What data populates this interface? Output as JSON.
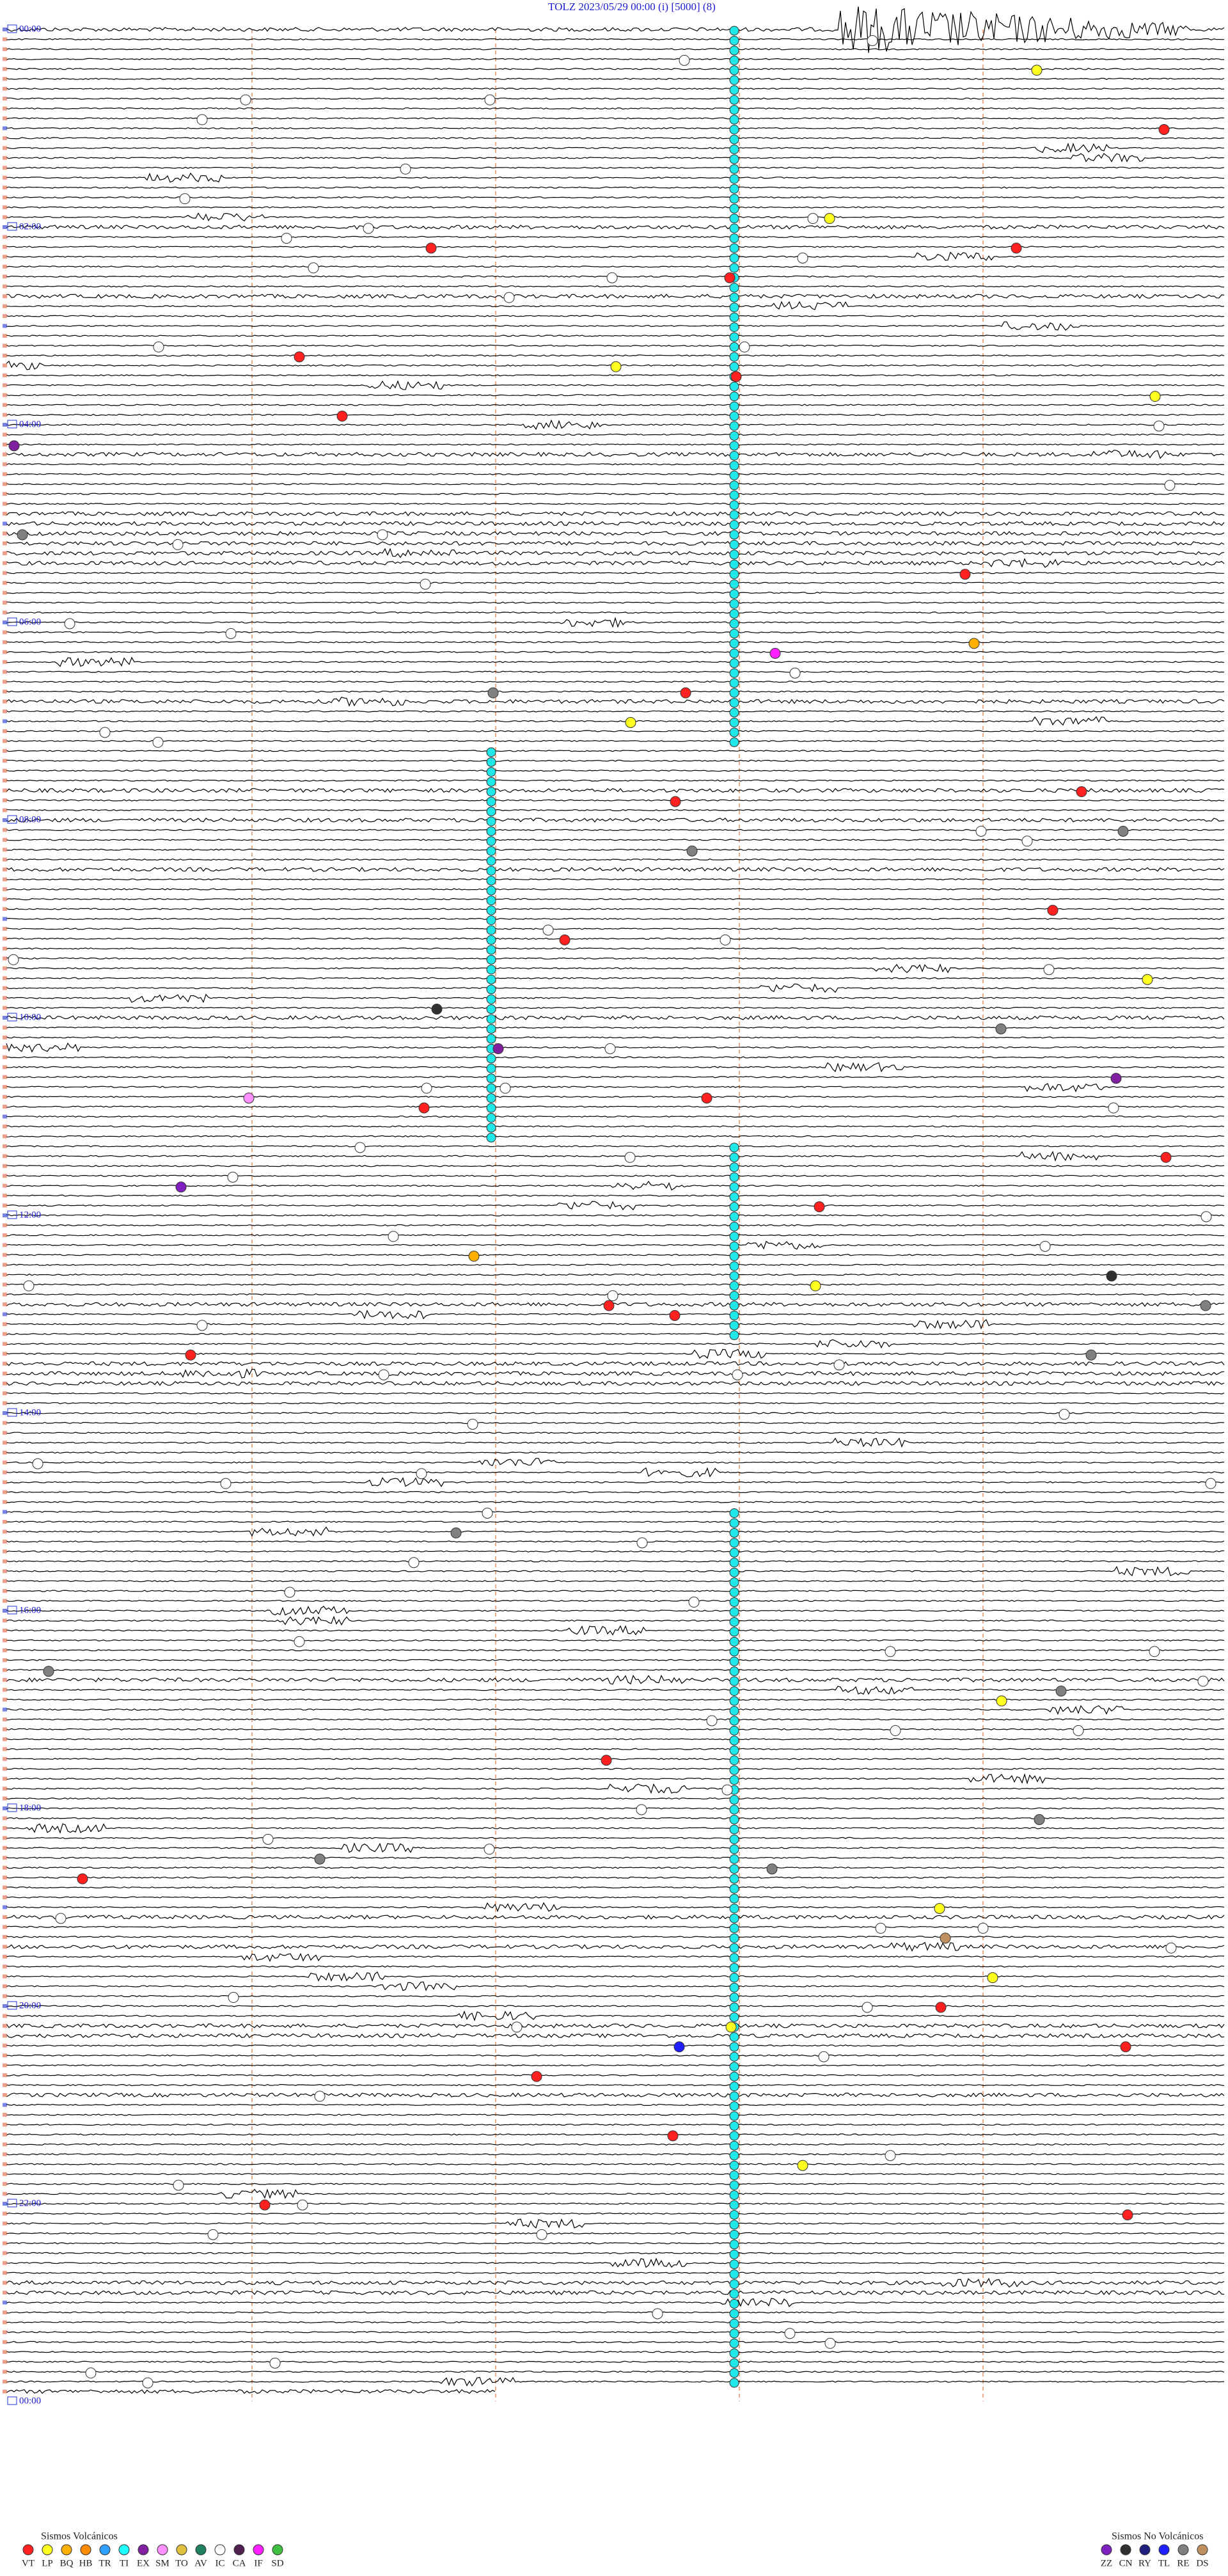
{
  "header": {
    "title": "TOLZ     2023/05/29 00:00     (i)     [5000]    (8)"
  },
  "hour_labels": [
    "00:00",
    "02:00",
    "04:00",
    "06:00",
    "08:00",
    "10:00",
    "12:00",
    "14:00",
    "16:00",
    "18:00",
    "20:00",
    "22:00",
    "00:00"
  ],
  "legend": {
    "volcanic": {
      "title": "Sismos Volcánicos",
      "items": [
        {
          "code": "VT",
          "color": "#ff2020"
        },
        {
          "code": "LP",
          "color": "#ffff20"
        },
        {
          "code": "BQ",
          "color": "#ffb000"
        },
        {
          "code": "HB",
          "color": "#ff8c00"
        },
        {
          "code": "TR",
          "color": "#30a0ff"
        },
        {
          "code": "TI",
          "color": "#20ffff"
        },
        {
          "code": "EX",
          "color": "#8020a0"
        },
        {
          "code": "SM",
          "color": "#ff90ff"
        },
        {
          "code": "TO",
          "color": "#e0c040"
        },
        {
          "code": "AV",
          "color": "#208060"
        },
        {
          "code": "IC",
          "color": "#ffffff"
        },
        {
          "code": "CA",
          "color": "#502050"
        },
        {
          "code": "IF",
          "color": "#ff20ff"
        },
        {
          "code": "SD",
          "color": "#40c040"
        }
      ]
    },
    "non_volcanic": {
      "title": "Sismos No Volcánicos",
      "items": [
        {
          "code": "ZZ",
          "color": "#8020c0"
        },
        {
          "code": "CN",
          "color": "#303030"
        },
        {
          "code": "RY",
          "color": "#202080"
        },
        {
          "code": "TL",
          "color": "#2020ff"
        },
        {
          "code": "RE",
          "color": "#808080"
        },
        {
          "code": "DS",
          "color": "#c09060"
        }
      ]
    }
  }
}
